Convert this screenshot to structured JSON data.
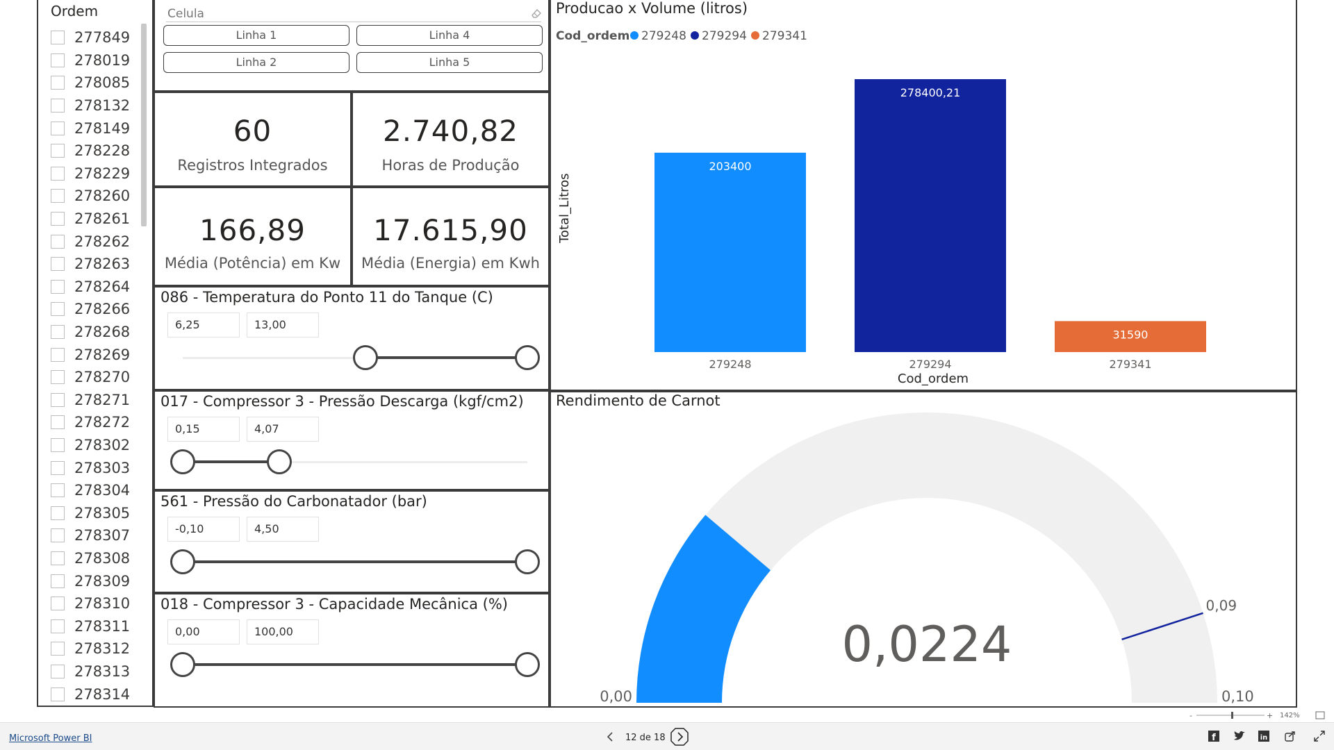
{
  "ordem_slicer": {
    "title": "Ordem",
    "items": [
      "277849",
      "278019",
      "278085",
      "278132",
      "278149",
      "278228",
      "278229",
      "278260",
      "278261",
      "278262",
      "278263",
      "278264",
      "278266",
      "278268",
      "278269",
      "278270",
      "278271",
      "278272",
      "278302",
      "278303",
      "278304",
      "278305",
      "278307",
      "278308",
      "278309",
      "278310",
      "278311",
      "278312",
      "278313",
      "278314"
    ]
  },
  "celula_slicer": {
    "placeholder": "Celula",
    "buttons": [
      "Linha 1",
      "Linha 4",
      "Linha 2",
      "Linha 5"
    ]
  },
  "kpis": [
    {
      "value": "60",
      "label": "Registros Integrados"
    },
    {
      "value": "2.740,82",
      "label": "Horas de Produção"
    },
    {
      "value": "166,89",
      "label": "Média (Potência) em Kw"
    },
    {
      "value": "17.615,90",
      "label": "Média (Energia) em Kwh"
    }
  ],
  "range_slicers": [
    {
      "title": "086 - Temperatura do Ponto 11 do Tanque (C)",
      "min": "6,25",
      "max": "13,00",
      "low_frac": 0.53,
      "high_frac": 1.0
    },
    {
      "title": "017 - Compressor 3 - Pressão Descarga (kgf/cm2)",
      "min": "0,15",
      "max": "4,07",
      "low_frac": 0.0,
      "high_frac": 0.28
    },
    {
      "title": "561 - Pressão do Carbonatador (bar)",
      "min": "-0,10",
      "max": "4,50",
      "low_frac": 0.0,
      "high_frac": 1.0
    },
    {
      "title": "018 - Compressor 3 - Capacidade Mecânica (%)",
      "min": "0,00",
      "max": "100,00",
      "low_frac": 0.0,
      "high_frac": 1.0
    }
  ],
  "bar_chart": {
    "title": "Producao x Volume (litros)",
    "legend_title": "Cod_ordem",
    "xlabel": "Cod_ordem",
    "ylabel": "Total_Litros",
    "colors": [
      "#118dff",
      "#12239e",
      "#e66c37"
    ]
  },
  "chart_data": {
    "type": "bar",
    "title": "Producao x Volume (litros)",
    "xlabel": "Cod_ordem",
    "ylabel": "Total_Litros",
    "categories": [
      "279248",
      "279294",
      "279341"
    ],
    "values": [
      203400,
      278400.21,
      31590
    ],
    "value_labels": [
      "203400",
      "278400,21",
      "31590"
    ],
    "legend": [
      "279248",
      "279294",
      "279341"
    ],
    "legend_placement": "top-left",
    "ylim": [
      0,
      300000
    ],
    "grid": false
  },
  "gauge": {
    "title": "Rendimento de Carnot",
    "value": 0.0224,
    "value_label": "0,0224",
    "min": 0,
    "min_label": "0,00",
    "max": 0.1,
    "max_label": "0,10",
    "target": 0.09,
    "target_label": "0,09",
    "fill_color": "#118dff",
    "target_color": "#12239e"
  },
  "footer": {
    "brand_link": "Microsoft Power BI",
    "page_indicator": "12 de 18",
    "zoom": "142%"
  }
}
